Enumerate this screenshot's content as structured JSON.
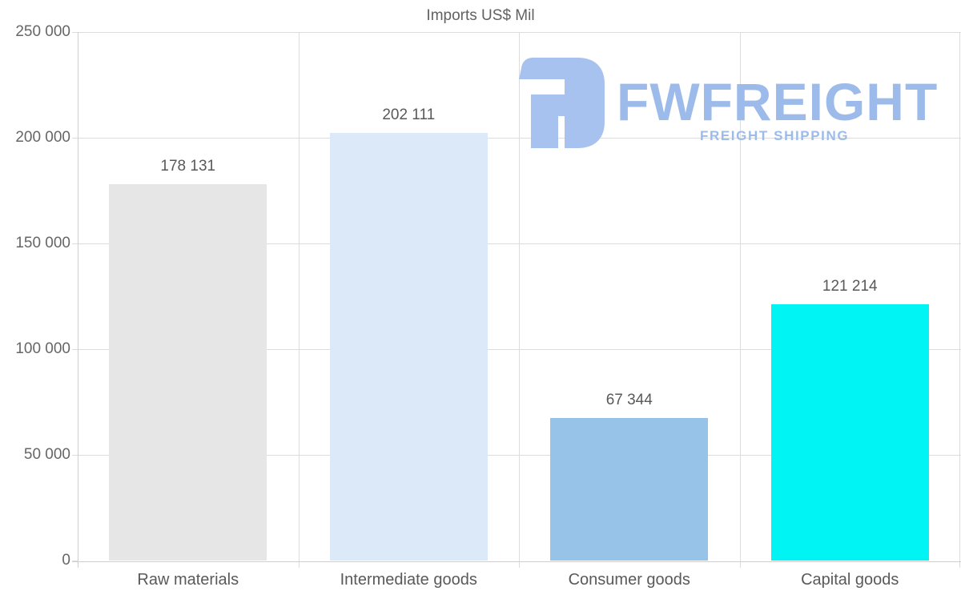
{
  "title": "Imports US$ Mil",
  "colors": {
    "background": "#ffffff",
    "gridline": "#dcdcdc",
    "axis": "#cfcfcf",
    "title_text": "#616161",
    "y_label_text": "#666666",
    "value_label_text": "#595959"
  },
  "watermark": {
    "brand": "FWFREIGHT",
    "tagline": "FREIGHT SHIPPING",
    "icon": "fwfreight-logo-icon",
    "icon_color": "#a7c2ee",
    "text_color": "#9dbbea"
  },
  "chart_data": {
    "type": "bar",
    "title": "Imports US$ Mil",
    "categories": [
      "Raw materials",
      "Intermediate goods",
      "Consumer goods",
      "Capital goods"
    ],
    "values": [
      178131,
      202111,
      67344,
      121214
    ],
    "value_labels": [
      "178 131",
      "202 111",
      "67 344",
      "121 214"
    ],
    "bar_colors": [
      "#e6e6e6",
      "#dbe9f8",
      "#98c3e8",
      "#00f4f4"
    ],
    "xlabel": "",
    "ylabel": "",
    "ylim": [
      0,
      250000
    ],
    "ytick_step": 50000,
    "yticks": [
      {
        "value": 0,
        "label": "0"
      },
      {
        "value": 50000,
        "label": "50 000"
      },
      {
        "value": 100000,
        "label": "100 000"
      },
      {
        "value": 150000,
        "label": "150 000"
      },
      {
        "value": 200000,
        "label": "200 000"
      },
      {
        "value": 250000,
        "label": "250 000"
      }
    ],
    "grid": true,
    "legend": false
  }
}
